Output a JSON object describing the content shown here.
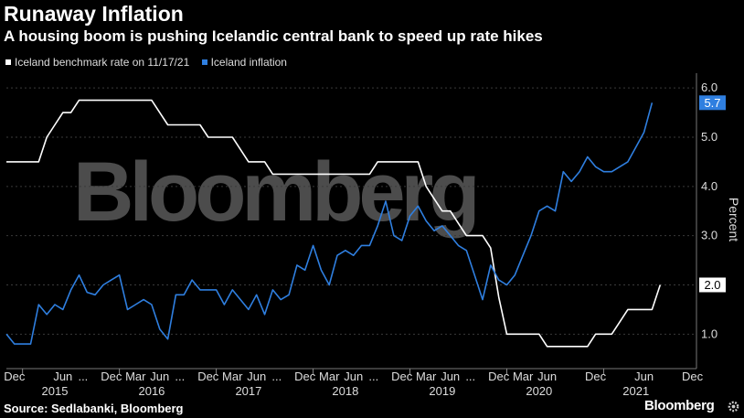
{
  "header": {
    "title": "Runaway Inflation",
    "subtitle": "A housing boom is pushing Icelandic central bank to speed up rate hikes"
  },
  "footer": {
    "source": "Source: Sedlabanki, Bloomberg",
    "brand": "Bloomberg",
    "watermark": "Bloomberg"
  },
  "colors": {
    "background": "#000000",
    "rate": "#ffffff",
    "inflation": "#2f7fe0",
    "grid": "#3a3a3a"
  },
  "chart_data": {
    "type": "line",
    "title": "Runaway Inflation",
    "subtitle": "A housing boom is pushing Icelandic central bank to speed up rate hikes",
    "ylabel": "Percent",
    "ylim": [
      0.3,
      6.3
    ],
    "y_ticks": [
      1.0,
      2.0,
      3.0,
      4.0,
      5.0,
      6.0
    ],
    "y_tick_labels": [
      "1.0",
      "2.0",
      "3.0",
      "4.0",
      "5.0",
      "6.0"
    ],
    "y_axis_side": "right",
    "grid": "horizontal dashed",
    "x_start_month": "2015-11",
    "x_end_month": "2021-12",
    "x_month_labels": [
      {
        "label": "Dec",
        "m": 1
      },
      {
        "label": "Jun",
        "m": 7
      },
      {
        "label": "...",
        "m": 9.5
      },
      {
        "label": "Dec",
        "m": 13
      },
      {
        "label": "Mar",
        "m": 16
      },
      {
        "label": "Jun",
        "m": 19
      },
      {
        "label": "...",
        "m": 21.5
      },
      {
        "label": "Dec",
        "m": 25
      },
      {
        "label": "Mar",
        "m": 28
      },
      {
        "label": "Jun",
        "m": 31
      },
      {
        "label": "...",
        "m": 33.5
      },
      {
        "label": "Dec",
        "m": 37
      },
      {
        "label": "Mar",
        "m": 40
      },
      {
        "label": "Jun",
        "m": 43
      },
      {
        "label": "...",
        "m": 45.5
      },
      {
        "label": "Dec",
        "m": 49
      },
      {
        "label": "Mar",
        "m": 52
      },
      {
        "label": "Jun",
        "m": 55
      },
      {
        "label": "...",
        "m": 57.5
      },
      {
        "label": "Dec",
        "m": 61
      },
      {
        "label": "Mar",
        "m": 64
      },
      {
        "label": "Jun",
        "m": 67
      },
      {
        "label": "Dec",
        "m": 73
      },
      {
        "label": "Jun",
        "m": 79
      },
      {
        "label": "Dec",
        "m": 85
      }
    ],
    "x_year_labels": [
      {
        "label": "2015",
        "m": 6
      },
      {
        "label": "2016",
        "m": 18
      },
      {
        "label": "2017",
        "m": 30
      },
      {
        "label": "2018",
        "m": 42
      },
      {
        "label": "2019",
        "m": 54
      },
      {
        "label": "2020",
        "m": 66
      },
      {
        "label": "2021",
        "m": 78
      }
    ],
    "legend": {
      "position": "top-left"
    },
    "series": [
      {
        "name": "Iceland benchmark rate on 11/17/21",
        "color": "#ffffff",
        "end_label": "2.0",
        "points": [
          [
            0,
            4.5
          ],
          [
            4,
            4.5
          ],
          [
            5,
            5.0
          ],
          [
            6,
            5.25
          ],
          [
            7,
            5.5
          ],
          [
            8,
            5.5
          ],
          [
            9,
            5.75
          ],
          [
            15,
            5.75
          ],
          [
            16,
            5.75
          ],
          [
            17,
            5.75
          ],
          [
            18,
            5.75
          ],
          [
            20,
            5.25
          ],
          [
            22,
            5.25
          ],
          [
            24,
            5.25
          ],
          [
            25,
            5.0
          ],
          [
            28,
            5.0
          ],
          [
            29,
            4.75
          ],
          [
            30,
            4.5
          ],
          [
            32,
            4.5
          ],
          [
            33,
            4.25
          ],
          [
            37,
            4.25
          ],
          [
            41,
            4.25
          ],
          [
            43,
            4.25
          ],
          [
            45,
            4.25
          ],
          [
            46,
            4.5
          ],
          [
            49,
            4.5
          ],
          [
            51,
            4.5
          ],
          [
            52,
            4.0
          ],
          [
            53,
            3.75
          ],
          [
            54,
            3.5
          ],
          [
            55,
            3.5
          ],
          [
            56,
            3.25
          ],
          [
            57,
            3.0
          ],
          [
            59,
            3.0
          ],
          [
            60,
            2.75
          ],
          [
            61,
            1.75
          ],
          [
            62,
            1.0
          ],
          [
            63,
            1.0
          ],
          [
            65,
            1.0
          ],
          [
            66,
            1.0
          ],
          [
            67,
            0.75
          ],
          [
            71,
            0.75
          ],
          [
            72,
            0.75
          ],
          [
            73,
            1.0
          ],
          [
            75,
            1.0
          ],
          [
            76,
            1.25
          ],
          [
            77,
            1.5
          ],
          [
            78,
            1.5
          ],
          [
            79,
            1.5
          ],
          [
            80,
            1.5
          ],
          [
            81,
            2.0
          ]
        ]
      },
      {
        "name": "Iceland inflation",
        "color": "#2f7fe0",
        "end_label": "5.7",
        "points": [
          [
            0,
            1.0
          ],
          [
            1,
            0.8
          ],
          [
            3,
            0.8
          ],
          [
            4,
            1.6
          ],
          [
            5,
            1.4
          ],
          [
            6,
            1.6
          ],
          [
            7,
            1.5
          ],
          [
            8,
            1.9
          ],
          [
            9,
            2.2
          ],
          [
            10,
            1.85
          ],
          [
            11,
            1.8
          ],
          [
            12,
            2.0
          ],
          [
            13,
            2.1
          ],
          [
            14,
            2.2
          ],
          [
            15,
            1.5
          ],
          [
            16,
            1.6
          ],
          [
            17,
            1.7
          ],
          [
            18,
            1.6
          ],
          [
            19,
            1.1
          ],
          [
            20,
            0.9
          ],
          [
            21,
            1.8
          ],
          [
            22,
            1.8
          ],
          [
            23,
            2.1
          ],
          [
            24,
            1.9
          ],
          [
            25,
            1.9
          ],
          [
            26,
            1.9
          ],
          [
            27,
            1.6
          ],
          [
            28,
            1.9
          ],
          [
            29,
            1.7
          ],
          [
            30,
            1.5
          ],
          [
            31,
            1.8
          ],
          [
            32,
            1.4
          ],
          [
            33,
            1.9
          ],
          [
            34,
            1.7
          ],
          [
            35,
            1.8
          ],
          [
            36,
            2.4
          ],
          [
            37,
            2.3
          ],
          [
            38,
            2.8
          ],
          [
            39,
            2.3
          ],
          [
            40,
            2.0
          ],
          [
            41,
            2.6
          ],
          [
            42,
            2.7
          ],
          [
            43,
            2.6
          ],
          [
            44,
            2.8
          ],
          [
            45,
            2.8
          ],
          [
            46,
            3.2
          ],
          [
            47,
            3.7
          ],
          [
            48,
            3.0
          ],
          [
            49,
            2.9
          ],
          [
            50,
            3.4
          ],
          [
            51,
            3.6
          ],
          [
            52,
            3.3
          ],
          [
            53,
            3.1
          ],
          [
            54,
            3.2
          ],
          [
            55,
            3.0
          ],
          [
            56,
            2.8
          ],
          [
            57,
            2.7
          ],
          [
            58,
            2.2
          ],
          [
            59,
            1.7
          ],
          [
            60,
            2.4
          ],
          [
            61,
            2.1
          ],
          [
            62,
            2.0
          ],
          [
            63,
            2.2
          ],
          [
            64,
            2.6
          ],
          [
            65,
            3.0
          ],
          [
            66,
            3.5
          ],
          [
            67,
            3.6
          ],
          [
            68,
            3.5
          ],
          [
            69,
            4.3
          ],
          [
            70,
            4.1
          ],
          [
            71,
            4.3
          ],
          [
            72,
            4.6
          ],
          [
            73,
            4.4
          ],
          [
            74,
            4.3
          ],
          [
            75,
            4.3
          ],
          [
            76,
            4.4
          ],
          [
            77,
            4.5
          ],
          [
            78,
            4.8
          ],
          [
            79,
            5.1
          ],
          [
            80,
            5.7
          ]
        ]
      }
    ]
  }
}
